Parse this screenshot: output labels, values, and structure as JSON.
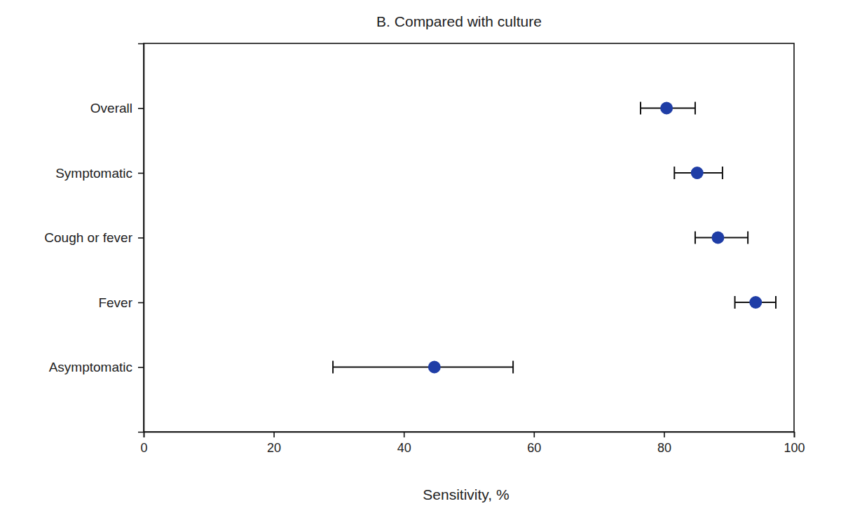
{
  "chart_data": {
    "type": "scatter",
    "orientation": "horizontal",
    "title": "B. Compared with culture",
    "x_label": "Sensitivity, %",
    "categories": [
      "Overall",
      "Symptomatic",
      "Cough or fever",
      "Fever",
      "Asymptomatic"
    ],
    "values": [
      80.4,
      85.1,
      88.3,
      94.1,
      44.7
    ],
    "ci_low": [
      76.4,
      81.6,
      84.8,
      90.9,
      29.1
    ],
    "ci_high": [
      84.8,
      89.0,
      92.9,
      97.2,
      56.8
    ],
    "color": "#1f3da6",
    "xlim": [
      0,
      100
    ],
    "xticks": [
      0,
      20,
      40,
      60,
      80,
      100
    ]
  }
}
